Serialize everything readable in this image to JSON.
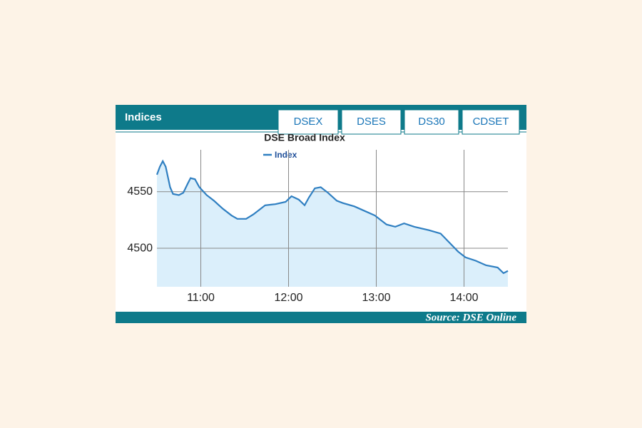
{
  "header": {
    "title": "Indices"
  },
  "tabs": [
    "DSEX",
    "DSES",
    "DS30",
    "CDSET"
  ],
  "source": "Source: DSE Online",
  "chart_data": {
    "type": "line",
    "title": "DSE Broad Index",
    "x": [
      630,
      632,
      634,
      636,
      639,
      641,
      645,
      648,
      651,
      653,
      656,
      659,
      664,
      669,
      675,
      681,
      685,
      691,
      696,
      704,
      711,
      718,
      722,
      727,
      731,
      734,
      738,
      742,
      747,
      753,
      757,
      765,
      772,
      779,
      787,
      793,
      799,
      806,
      816,
      824,
      830,
      836,
      841,
      848,
      855,
      863,
      867,
      870
    ],
    "series": [
      {
        "name": "Index",
        "color": "#2f7fc1",
        "values": [
          4565,
          4572,
          4577,
          4572,
          4554,
          4548,
          4547,
          4549,
          4557,
          4562,
          4561,
          4554,
          4547,
          4542,
          4535,
          4529,
          4526,
          4526,
          4530,
          4538,
          4539,
          4541,
          4546,
          4543,
          4538,
          4545,
          4553,
          4554,
          4549,
          4542,
          4540,
          4537,
          4533,
          4529,
          4521,
          4519,
          4522,
          4519,
          4516,
          4513,
          4505,
          4497,
          4492,
          4489,
          4485,
          4483,
          4478,
          4480
        ]
      }
    ],
    "xlim": [
      630,
      870
    ],
    "xticks": [
      {
        "value": 660,
        "label": "11:00"
      },
      {
        "value": 720,
        "label": "12:00"
      },
      {
        "value": 780,
        "label": "13:00"
      },
      {
        "value": 840,
        "label": "14:00"
      }
    ],
    "ylim": [
      4466,
      4587
    ],
    "yticks": [
      4500,
      4550
    ],
    "grid": true,
    "fill_color": "#dbeffb"
  }
}
